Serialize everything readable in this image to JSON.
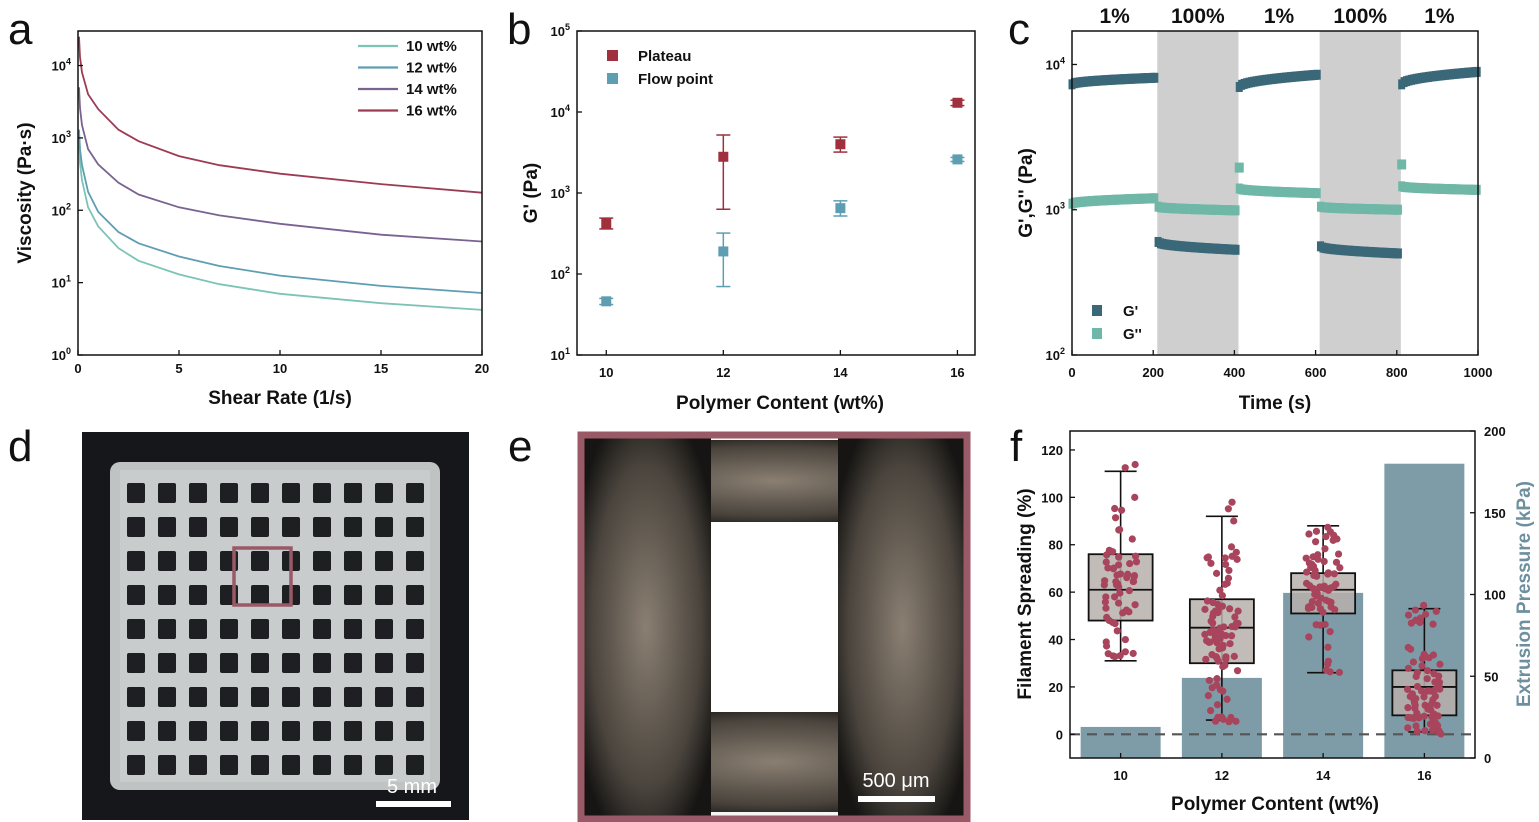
{
  "panels": {
    "a": {
      "letter": "a"
    },
    "b": {
      "letter": "b"
    },
    "c": {
      "letter": "c"
    },
    "d": {
      "letter": "d",
      "scale_bar": "5 mm"
    },
    "e": {
      "letter": "e",
      "scale_bar": "500 μm"
    },
    "f": {
      "letter": "f"
    }
  },
  "colors": {
    "10wt": "#7cc4b5",
    "12wt": "#5e9eb2",
    "14wt": "#7a6390",
    "16wt": "#9d3b54",
    "plateau": "#a0303d",
    "flow_point": "#5e9eb2",
    "Gprime": "#3a6878",
    "Gdoubleprime": "#6fb7a6",
    "box_points": "#a8445c",
    "bars": "#7e9ca8",
    "box_fill": "#b7b0ad",
    "shade": "#cfcfcf",
    "frame_e": "#9a5966"
  },
  "chart_data": [
    {
      "panel": "a",
      "type": "line",
      "xlabel": "Shear Rate (1/s)",
      "ylabel": "Viscosity (Pa·s)",
      "xlim": [
        0,
        20
      ],
      "ylim": [
        1,
        30000
      ],
      "yscale": "log",
      "x_ticks": [
        "0",
        "5",
        "10",
        "15",
        "20"
      ],
      "y_ticks": [
        {
          "base": "10",
          "exp": "0"
        },
        {
          "base": "10",
          "exp": "1"
        },
        {
          "base": "10",
          "exp": "2"
        },
        {
          "base": "10",
          "exp": "3"
        },
        {
          "base": "10",
          "exp": "4"
        }
      ],
      "legend_position": "top-right",
      "x": [
        0.05,
        0.1,
        0.2,
        0.5,
        1,
        2,
        3,
        5,
        7,
        10,
        15,
        20
      ],
      "series": [
        {
          "name": "10 wt%",
          "color_key": "10wt",
          "values": [
            900,
            450,
            260,
            110,
            60,
            30,
            20,
            13,
            9.5,
            7,
            5.2,
            4.2
          ]
        },
        {
          "name": "12 wt%",
          "color_key": "12wt",
          "values": [
            1300,
            700,
            420,
            180,
            95,
            50,
            35,
            23,
            17,
            12.5,
            9,
            7.2
          ]
        },
        {
          "name": "14 wt%",
          "color_key": "14wt",
          "values": [
            5000,
            2600,
            1500,
            700,
            430,
            240,
            165,
            110,
            85,
            65,
            46,
            37
          ]
        },
        {
          "name": "16 wt%",
          "color_key": "16wt",
          "values": [
            25000,
            13000,
            8000,
            4000,
            2500,
            1300,
            900,
            560,
            420,
            320,
            230,
            175
          ]
        }
      ]
    },
    {
      "panel": "b",
      "type": "scatter",
      "xlabel": "Polymer Content (wt%)",
      "ylabel": "G' (Pa)",
      "xlim": [
        9.5,
        16.3
      ],
      "ylim": [
        10,
        100000
      ],
      "yscale": "log",
      "x_ticks": [
        "10",
        "12",
        "14",
        "16"
      ],
      "y_ticks": [
        {
          "base": "10",
          "exp": "1"
        },
        {
          "base": "10",
          "exp": "2"
        },
        {
          "base": "10",
          "exp": "3"
        },
        {
          "base": "10",
          "exp": "4"
        },
        {
          "base": "10",
          "exp": "5"
        }
      ],
      "legend_position": "top-left",
      "series": [
        {
          "name": "Plateau",
          "color_key": "plateau",
          "x": [
            10,
            12,
            14,
            16
          ],
          "values": [
            420,
            2800,
            4000,
            13000
          ],
          "err_low": [
            360,
            630,
            3200,
            12000
          ],
          "err_high": [
            490,
            5200,
            4900,
            14000
          ]
        },
        {
          "name": "Flow point",
          "color_key": "flow_point",
          "x": [
            10,
            12,
            14,
            16
          ],
          "values": [
            46,
            190,
            650,
            2600
          ],
          "err_low": [
            42,
            70,
            520,
            2450
          ],
          "err_high": [
            50,
            320,
            800,
            2750
          ]
        }
      ]
    },
    {
      "panel": "c",
      "type": "scatter",
      "xlabel": "Time (s)",
      "ylabel": "G',G'' (Pa)",
      "xlim": [
        0,
        1000
      ],
      "ylim": [
        100,
        17000
      ],
      "yscale": "log",
      "x_ticks": [
        "0",
        "200",
        "400",
        "600",
        "800",
        "1000"
      ],
      "y_ticks": [
        {
          "base": "10",
          "exp": "2"
        },
        {
          "base": "10",
          "exp": "3"
        },
        {
          "base": "10",
          "exp": "4"
        }
      ],
      "legend_position": "bottom-left",
      "phases": [
        {
          "label": "1%",
          "x": [
            0,
            210
          ],
          "shaded": false
        },
        {
          "label": "100%",
          "x": [
            210,
            410
          ],
          "shaded": true
        },
        {
          "label": "1%",
          "x": [
            410,
            610
          ],
          "shaded": false
        },
        {
          "label": "100%",
          "x": [
            610,
            810
          ],
          "shaded": true
        },
        {
          "label": "1%",
          "x": [
            810,
            1000
          ],
          "shaded": false
        }
      ],
      "series": [
        {
          "name": "G'",
          "color_key": "Gprime",
          "segments": [
            {
              "x0": 0,
              "x1": 205,
              "y0": 7300,
              "y1": 8100
            },
            {
              "x0": 212,
              "x1": 405,
              "y0": 600,
              "y1": 530
            },
            {
              "x0": 412,
              "x1": 605,
              "y0": 7000,
              "y1": 8500
            },
            {
              "x0": 612,
              "x1": 805,
              "y0": 560,
              "y1": 500
            },
            {
              "x0": 812,
              "x1": 1000,
              "y0": 7300,
              "y1": 8900
            }
          ]
        },
        {
          "name": "G''",
          "color_key": "Gdoubleprime",
          "segments": [
            {
              "x0": 0,
              "x1": 205,
              "y0": 1100,
              "y1": 1200
            },
            {
              "x0": 212,
              "x1": 405,
              "y0": 1050,
              "y1": 990
            },
            {
              "x0": 412,
              "x1": 605,
              "y0": 1400,
              "y1": 1300
            },
            {
              "x0": 612,
              "x1": 805,
              "y0": 1050,
              "y1": 1000
            },
            {
              "x0": 812,
              "x1": 1000,
              "y0": 1450,
              "y1": 1370
            }
          ],
          "spikes": [
            {
              "x": 412,
              "y": 1950
            },
            {
              "x": 812,
              "y": 2050
            }
          ]
        }
      ]
    },
    {
      "panel": "f",
      "type": "bar",
      "xlabel": "Polymer Content (wt%)",
      "ylabel": "Filament Spreading (%)",
      "ylabel_right": "Extrusion Pressure (kPa)",
      "categories": [
        "10",
        "12",
        "14",
        "16"
      ],
      "ylim": [
        -10,
        128
      ],
      "ylim_right": [
        0,
        200
      ],
      "y_ticks": [
        "0",
        "20",
        "40",
        "60",
        "80",
        "100",
        "120"
      ],
      "y_ticks_right": [
        "0",
        "50",
        "100",
        "150",
        "200"
      ],
      "bars_kPa": [
        19,
        49,
        101,
        180
      ],
      "boxes": [
        {
          "min": 31,
          "q1": 48,
          "median": 61,
          "q3": 76,
          "max": 111,
          "points_low": 30,
          "points_high": 120,
          "n": 60
        },
        {
          "min": 6,
          "q1": 30,
          "median": 45,
          "q3": 57,
          "max": 92,
          "points_low": 5,
          "points_high": 101,
          "n": 90
        },
        {
          "min": 26,
          "q1": 51,
          "median": 61,
          "q3": 68,
          "max": 88,
          "points_low": 26,
          "points_high": 88,
          "n": 70
        },
        {
          "min": 1,
          "q1": 8,
          "median": 20,
          "q3": 27,
          "max": 53,
          "points_low": 0,
          "points_high": 55,
          "n": 80
        }
      ],
      "reference_line": 0
    }
  ]
}
